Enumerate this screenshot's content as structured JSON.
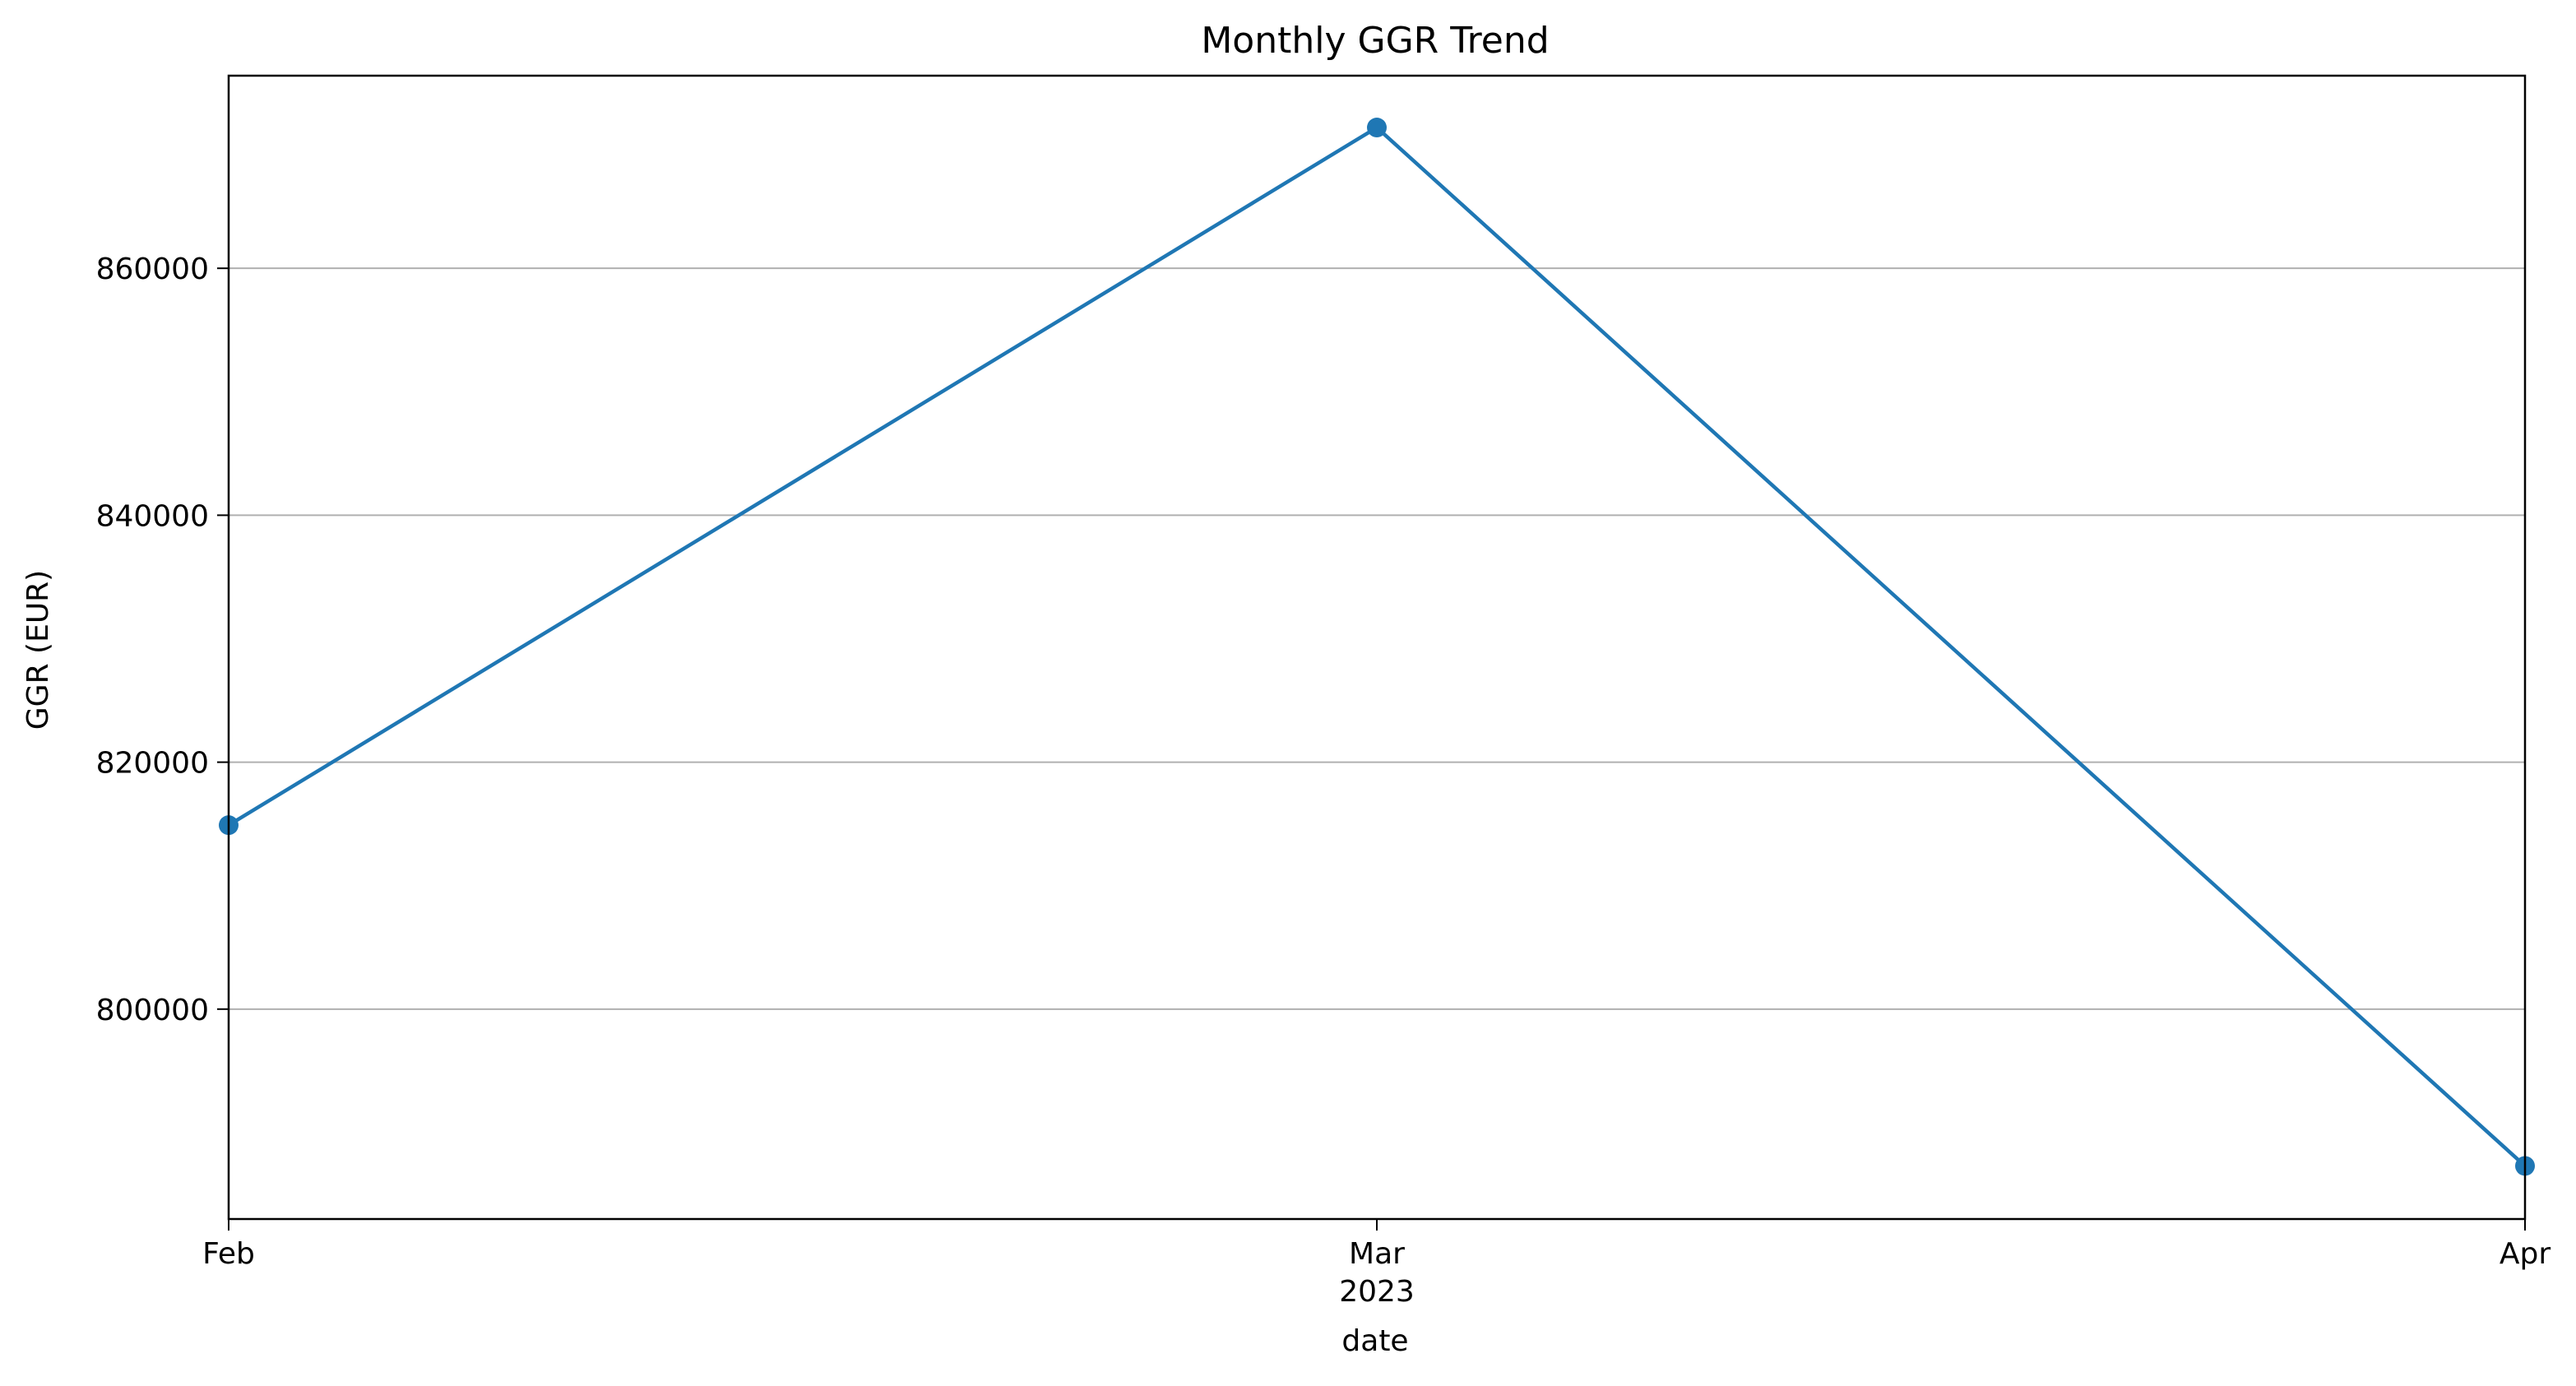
{
  "chart_data": {
    "type": "line",
    "title": "Monthly GGR Trend",
    "xlabel": "date",
    "ylabel": "GGR (EUR)",
    "x": [
      "2023-02",
      "2023-03",
      "2023-04"
    ],
    "x_tick_labels": [
      {
        "x": "2023-02",
        "label": "Feb",
        "sublabel": ""
      },
      {
        "x": "2023-03",
        "label": "Mar",
        "sublabel": "2023"
      },
      {
        "x": "2023-04",
        "label": "Apr",
        "sublabel": ""
      }
    ],
    "series": [
      {
        "values": [
          814900,
          871400,
          787300
        ],
        "color": "#1f77b4",
        "marker": "circle"
      }
    ],
    "ylim": [
      783000,
      875600
    ],
    "y_ticks": [
      800000,
      820000,
      840000,
      860000
    ],
    "y_tick_labels": [
      "800000",
      "820000",
      "840000",
      "860000"
    ],
    "grid": {
      "x": false,
      "y": true
    },
    "legend": "none"
  }
}
